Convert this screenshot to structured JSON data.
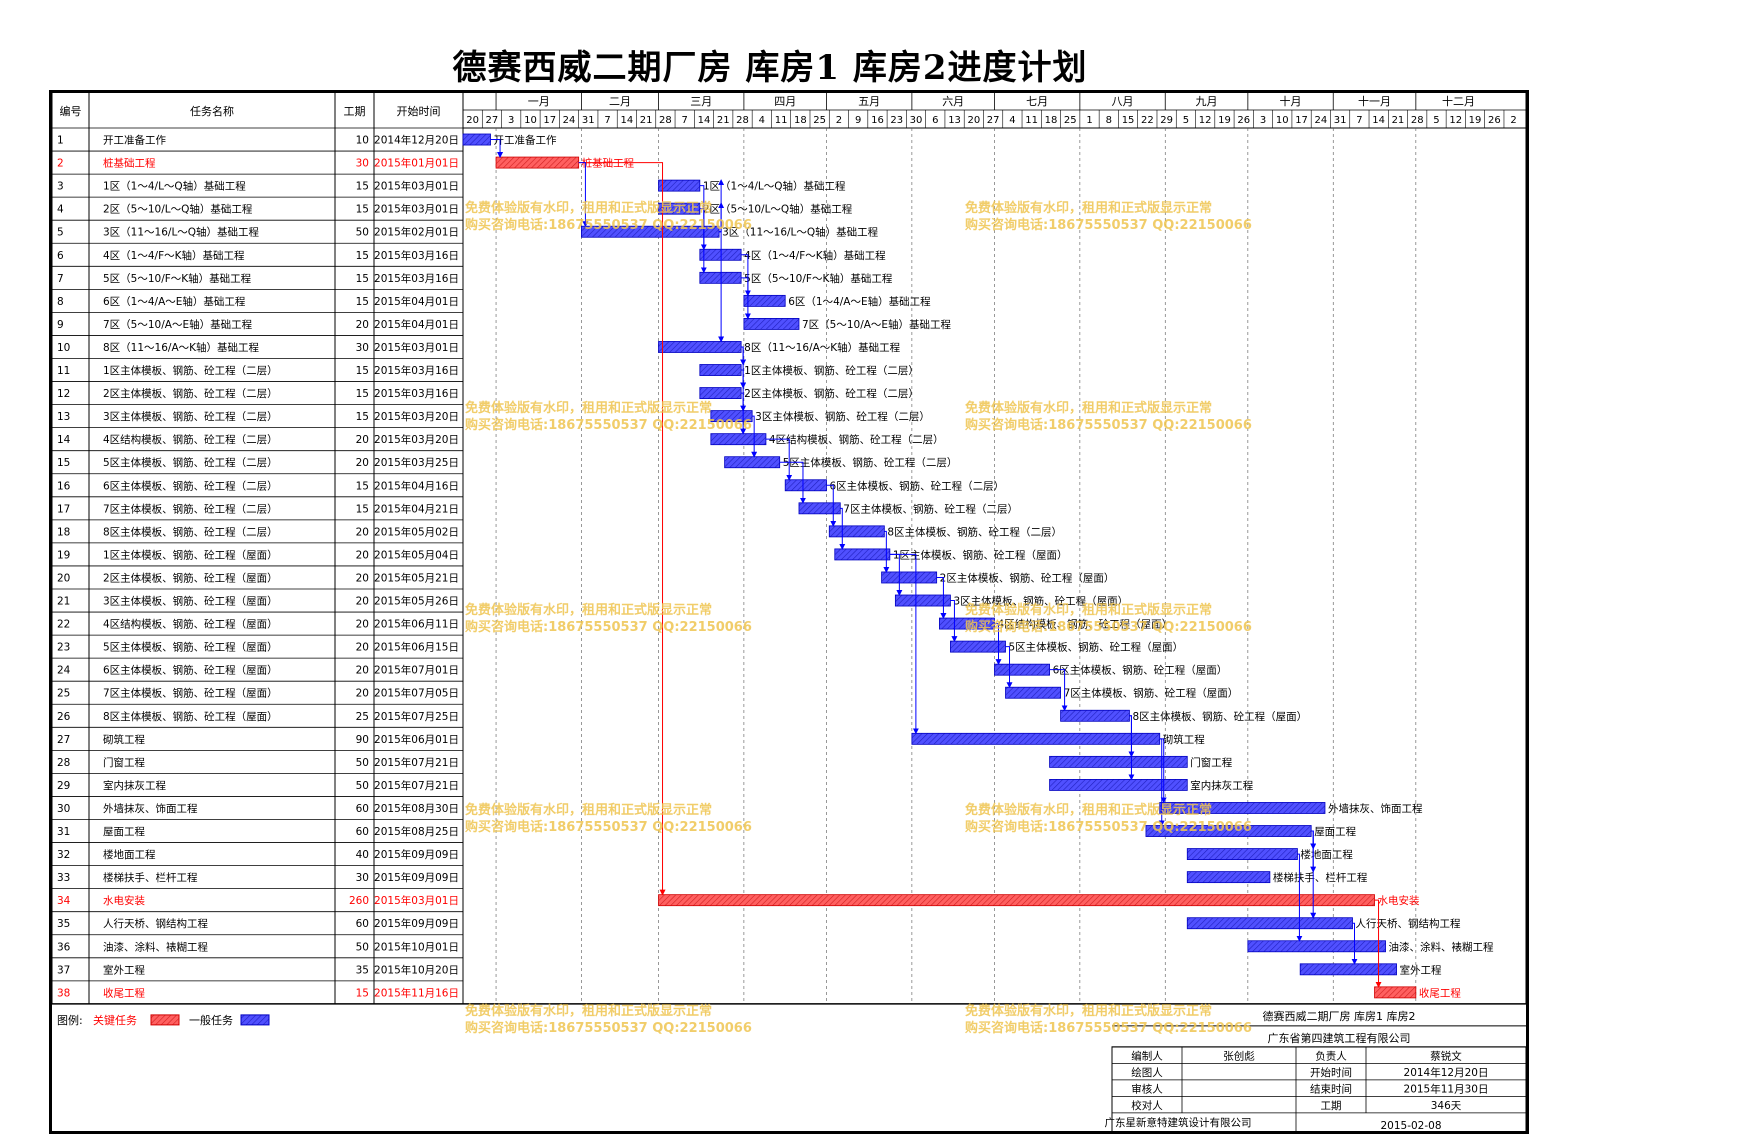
{
  "title": "德赛西威二期厂房  库房1  库房2进度计划",
  "headers": {
    "id": "编号",
    "name": "任务名称",
    "duration": "工期",
    "start": "开始时间"
  },
  "months": [
    "一月",
    "二月",
    "三月",
    "四月",
    "五月",
    "六月",
    "七月",
    "八月",
    "九月",
    "十月",
    "十一月",
    "十二月"
  ],
  "week_ticks": [
    "20",
    "27",
    "3",
    "10",
    "17",
    "24",
    "31",
    "7",
    "14",
    "21",
    "28",
    "7",
    "14",
    "21",
    "28",
    "4",
    "11",
    "18",
    "25",
    "2",
    "9",
    "16",
    "23",
    "30",
    "6",
    "13",
    "20",
    "27",
    "4",
    "11",
    "18",
    "25",
    "1",
    "8",
    "15",
    "22",
    "29",
    "5",
    "12",
    "19",
    "26",
    "3",
    "10",
    "17",
    "24",
    "31",
    "7",
    "14",
    "21",
    "28",
    "5",
    "12",
    "19",
    "26",
    "2"
  ],
  "legend": {
    "label": "图例:",
    "critical_label": "关键任务",
    "normal_label": "一般任务",
    "critical_color": "#ff5050",
    "normal_color": "#4040ff"
  },
  "watermark": {
    "line1": "免费体验版有水印，租用和正式版显示正常",
    "line2": "购买咨询电话:18675550537 QQ:22150066"
  },
  "info": {
    "line1": "德赛西威二期厂房  库房1  库房2",
    "line2": "广东省第四建筑工程有限公司",
    "rows": [
      [
        "编制人",
        "张创彪",
        "负责人",
        "蔡锐文"
      ],
      [
        "绘图人",
        "",
        "开始时间",
        "2014年12月20日"
      ],
      [
        "审核人",
        "",
        "结束时间",
        "2015年11月30日"
      ],
      [
        "校对人",
        "",
        "工期",
        "346天"
      ]
    ],
    "company": "广东星新意特建筑设计有限公司",
    "date": "2015-02-08"
  },
  "chart_data": {
    "type": "gantt",
    "x_start": "2014-12-20",
    "critical_color": "#ff5050",
    "normal_color": "#4040ff",
    "tasks": [
      {
        "id": "1",
        "name": "开工准备工作",
        "duration": 10,
        "start": "2014年12月20日",
        "start_iso": "2014-12-20",
        "critical": false
      },
      {
        "id": "2",
        "name": "桩基础工程",
        "duration": 30,
        "start": "2015年01月01日",
        "start_iso": "2015-01-01",
        "critical": true
      },
      {
        "id": "3",
        "name": "1区（1～4/L～Q轴）基础工程",
        "duration": 15,
        "start": "2015年03月01日",
        "start_iso": "2015-03-01",
        "critical": false
      },
      {
        "id": "4",
        "name": "2区（5～10/L～Q轴）基础工程",
        "duration": 15,
        "start": "2015年03月01日",
        "start_iso": "2015-03-01",
        "critical": false
      },
      {
        "id": "5",
        "name": "3区（11～16/L～Q轴）基础工程",
        "duration": 50,
        "start": "2015年02月01日",
        "start_iso": "2015-02-01",
        "critical": false
      },
      {
        "id": "6",
        "name": "4区（1～4/F～K轴）基础工程",
        "duration": 15,
        "start": "2015年03月16日",
        "start_iso": "2015-03-16",
        "critical": false
      },
      {
        "id": "7",
        "name": "5区（5～10/F～K轴）基础工程",
        "duration": 15,
        "start": "2015年03月16日",
        "start_iso": "2015-03-16",
        "critical": false
      },
      {
        "id": "8",
        "name": "6区（1～4/A～E轴）基础工程",
        "duration": 15,
        "start": "2015年04月01日",
        "start_iso": "2015-04-01",
        "critical": false
      },
      {
        "id": "9",
        "name": "7区（5～10/A～E轴）基础工程",
        "duration": 20,
        "start": "2015年04月01日",
        "start_iso": "2015-04-01",
        "critical": false
      },
      {
        "id": "10",
        "name": "8区（11～16/A～K轴）基础工程",
        "duration": 30,
        "start": "2015年03月01日",
        "start_iso": "2015-03-01",
        "critical": false
      },
      {
        "id": "11",
        "name": "1区主体模板、钢筋、砼工程（二层）",
        "duration": 15,
        "start": "2015年03月16日",
        "start_iso": "2015-03-16",
        "critical": false
      },
      {
        "id": "12",
        "name": "2区主体模板、钢筋、砼工程（二层）",
        "duration": 15,
        "start": "2015年03月16日",
        "start_iso": "2015-03-16",
        "critical": false
      },
      {
        "id": "13",
        "name": "3区主体模板、钢筋、砼工程（二层）",
        "duration": 15,
        "start": "2015年03月20日",
        "start_iso": "2015-03-20",
        "critical": false
      },
      {
        "id": "14",
        "name": "4区结构模板、钢筋、砼工程（二层）",
        "duration": 20,
        "start": "2015年03月20日",
        "start_iso": "2015-03-20",
        "critical": false
      },
      {
        "id": "15",
        "name": "5区主体模板、钢筋、砼工程（二层）",
        "duration": 20,
        "start": "2015年03月25日",
        "start_iso": "2015-03-25",
        "critical": false
      },
      {
        "id": "16",
        "name": "6区主体模板、钢筋、砼工程（二层）",
        "duration": 15,
        "start": "2015年04月16日",
        "start_iso": "2015-04-16",
        "critical": false
      },
      {
        "id": "17",
        "name": "7区主体模板、钢筋、砼工程（二层）",
        "duration": 15,
        "start": "2015年04月21日",
        "start_iso": "2015-04-21",
        "critical": false
      },
      {
        "id": "18",
        "name": "8区主体模板、钢筋、砼工程（二层）",
        "duration": 20,
        "start": "2015年05月02日",
        "start_iso": "2015-05-02",
        "critical": false
      },
      {
        "id": "19",
        "name": "1区主体模板、钢筋、砼工程（屋面）",
        "duration": 20,
        "start": "2015年05月04日",
        "start_iso": "2015-05-04",
        "critical": false
      },
      {
        "id": "20",
        "name": "2区主体模板、钢筋、砼工程（屋面）",
        "duration": 20,
        "start": "2015年05月21日",
        "start_iso": "2015-05-21",
        "critical": false
      },
      {
        "id": "21",
        "name": "3区主体模板、钢筋、砼工程（屋面）",
        "duration": 20,
        "start": "2015年05月26日",
        "start_iso": "2015-05-26",
        "critical": false
      },
      {
        "id": "22",
        "name": "4区结构模板、钢筋、砼工程（屋面）",
        "duration": 20,
        "start": "2015年06月11日",
        "start_iso": "2015-06-11",
        "critical": false
      },
      {
        "id": "23",
        "name": "5区主体模板、钢筋、砼工程（屋面）",
        "duration": 20,
        "start": "2015年06月15日",
        "start_iso": "2015-06-15",
        "critical": false
      },
      {
        "id": "24",
        "name": "6区主体模板、钢筋、砼工程（屋面）",
        "duration": 20,
        "start": "2015年07月01日",
        "start_iso": "2015-07-01",
        "critical": false
      },
      {
        "id": "25",
        "name": "7区主体模板、钢筋、砼工程（屋面）",
        "duration": 20,
        "start": "2015年07月05日",
        "start_iso": "2015-07-05",
        "critical": false
      },
      {
        "id": "26",
        "name": "8区主体模板、钢筋、砼工程（屋面）",
        "duration": 25,
        "start": "2015年07月25日",
        "start_iso": "2015-07-25",
        "critical": false
      },
      {
        "id": "27",
        "name": "砌筑工程",
        "duration": 90,
        "start": "2015年06月01日",
        "start_iso": "2015-06-01",
        "critical": false
      },
      {
        "id": "28",
        "name": "门窗工程",
        "duration": 50,
        "start": "2015年07月21日",
        "start_iso": "2015-07-21",
        "critical": false
      },
      {
        "id": "29",
        "name": "室内抹灰工程",
        "duration": 50,
        "start": "2015年07月21日",
        "start_iso": "2015-07-21",
        "critical": false
      },
      {
        "id": "30",
        "name": "外墙抹灰、饰面工程",
        "duration": 60,
        "start": "2015年08月30日",
        "start_iso": "2015-08-30",
        "critical": false
      },
      {
        "id": "31",
        "name": "屋面工程",
        "duration": 60,
        "start": "2015年08月25日",
        "start_iso": "2015-08-25",
        "critical": false
      },
      {
        "id": "32",
        "name": "楼地面工程",
        "duration": 40,
        "start": "2015年09月09日",
        "start_iso": "2015-09-09",
        "critical": false
      },
      {
        "id": "33",
        "name": "楼梯扶手、栏杆工程",
        "duration": 30,
        "start": "2015年09月09日",
        "start_iso": "2015-09-09",
        "critical": false
      },
      {
        "id": "34",
        "name": "水电安装",
        "duration": 260,
        "start": "2015年03月01日",
        "start_iso": "2015-03-01",
        "critical": true
      },
      {
        "id": "35",
        "name": "人行天桥、钢结构工程",
        "duration": 60,
        "start": "2015年09月09日",
        "start_iso": "2015-09-09",
        "critical": false
      },
      {
        "id": "36",
        "name": "油漆、涂料、裱糊工程",
        "duration": 50,
        "start": "2015年10月01日",
        "start_iso": "2015-10-01",
        "critical": false
      },
      {
        "id": "37",
        "name": "室外工程",
        "duration": 35,
        "start": "2015年10月20日",
        "start_iso": "2015-10-20",
        "critical": false
      },
      {
        "id": "38",
        "name": "收尾工程",
        "duration": 15,
        "start": "2015年11月16日",
        "start_iso": "2015-11-16",
        "critical": true
      }
    ]
  }
}
